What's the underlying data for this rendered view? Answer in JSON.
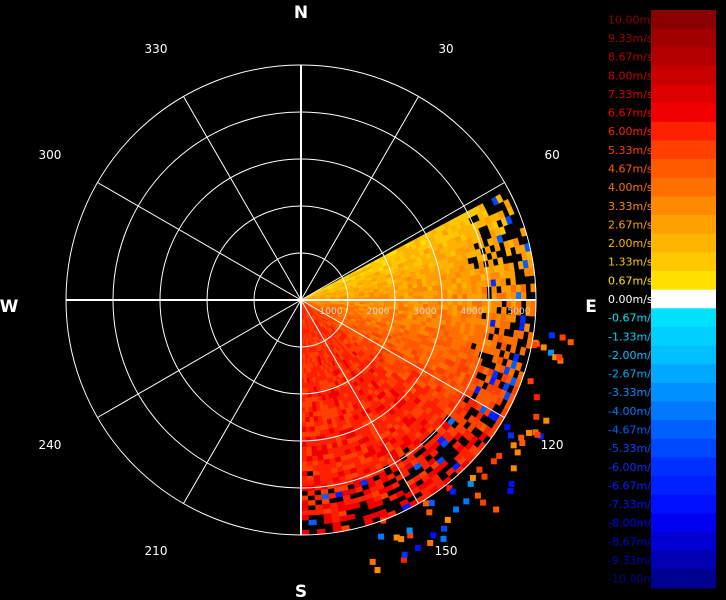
{
  "chart_data": {
    "type": "radar-ppi",
    "title": "",
    "directions": {
      "north": "N",
      "east": "E",
      "south": "S",
      "west": "W"
    },
    "bearing_labels": [
      "30",
      "60",
      "120",
      "150",
      "210",
      "240",
      "300",
      "330"
    ],
    "range_labels": [
      "1000",
      "2000",
      "3000",
      "4000",
      "5000"
    ],
    "range_max": 5000,
    "colorbar": {
      "labels": [
        "10.00m/s",
        "9.33m/s",
        "8.67m/s",
        "8.00m/s",
        "7.33m/s",
        "6.67m/s",
        "6.00m/s",
        "5.33m/s",
        "4.67m/s",
        "4.00m/s",
        "3.33m/s",
        "2.67m/s",
        "2.00m/s",
        "1.33m/s",
        "0.67m/s",
        "0.00m/s",
        "-0.67m/s",
        "-1.33m/s",
        "-2.00m/s",
        "-2.67m/s",
        "-3.33m/s",
        "-4.00m/s",
        "-4.67m/s",
        "-5.33m/s",
        "-6.00m/s",
        "-6.67m/s",
        "-7.33m/s",
        "-8.00m/s",
        "-8.67m/s",
        "-9.33m/s",
        "-10.00m/s"
      ],
      "colors": [
        "#8b0000",
        "#a00000",
        "#b40000",
        "#c80000",
        "#dc0000",
        "#f00000",
        "#ff2000",
        "#ff4000",
        "#ff5a00",
        "#ff7000",
        "#ff8a00",
        "#ffa000",
        "#ffb400",
        "#ffc800",
        "#ffe000",
        "#ffffff",
        "#00e0ff",
        "#00d0ff",
        "#00c0ff",
        "#00a8ff",
        "#0090ff",
        "#0078ff",
        "#0060ff",
        "#0048ff",
        "#0030ff",
        "#0020ff",
        "#0010ff",
        "#0000f0",
        "#0000d0",
        "#0000b0",
        "#000090"
      ]
    },
    "sector": {
      "azimuth_start_deg": 62,
      "azimuth_end_deg": 180,
      "data_range_m": 5000,
      "dominant_velocity_ms": 4.0,
      "near_bearing_velocity_ms": 1.0,
      "far_bearing_velocity_ms": 5.5
    },
    "grid": true
  }
}
